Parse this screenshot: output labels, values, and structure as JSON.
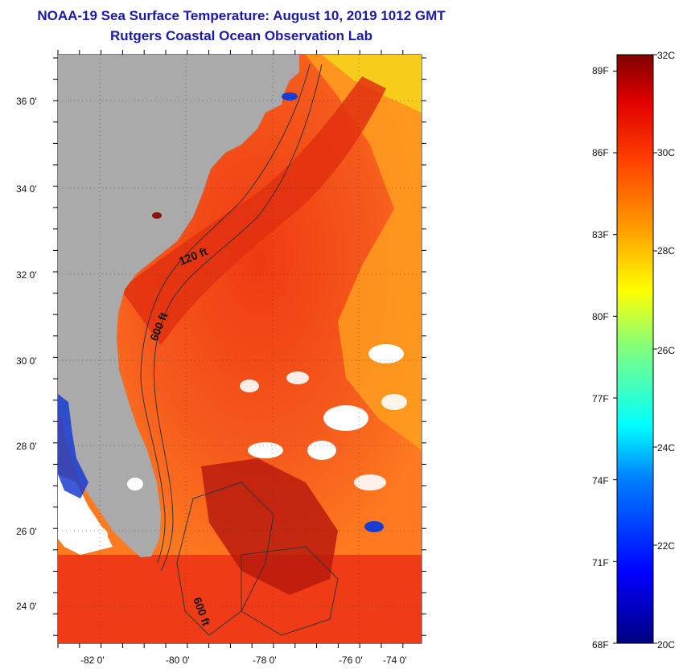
{
  "title": {
    "line1": "NOAA-19 Sea Surface Temperature:  August 10, 2019 1012 GMT",
    "line2": "Rutgers Coastal Ocean Observation Lab"
  },
  "map": {
    "lat_ticks": [
      "36 0'",
      "34 0'",
      "32 0'",
      "30 0'",
      "28 0'",
      "26 0'",
      "24 0'"
    ],
    "lon_ticks": [
      "-82 0'",
      "-80 0'",
      "-78 0'",
      "-76 0'",
      "-74 0'"
    ],
    "contour_labels": [
      "120 ft",
      "600 ft",
      "600 ft"
    ],
    "colors": {
      "land": "#aaaaaa",
      "cloud": "#ffffff",
      "warm_water": "#f34a1a",
      "shelf_water": "#ff7a1f"
    }
  },
  "colorbar": {
    "f_labels": [
      "89F",
      "86F",
      "83F",
      "80F",
      "77F",
      "74F",
      "71F",
      "68F"
    ],
    "c_labels": [
      "32C",
      "30C",
      "28C",
      "26C",
      "24C",
      "22C",
      "20C"
    ],
    "min_c": 20,
    "max_c": 32,
    "min_f": 68,
    "max_f": 89.6
  }
}
